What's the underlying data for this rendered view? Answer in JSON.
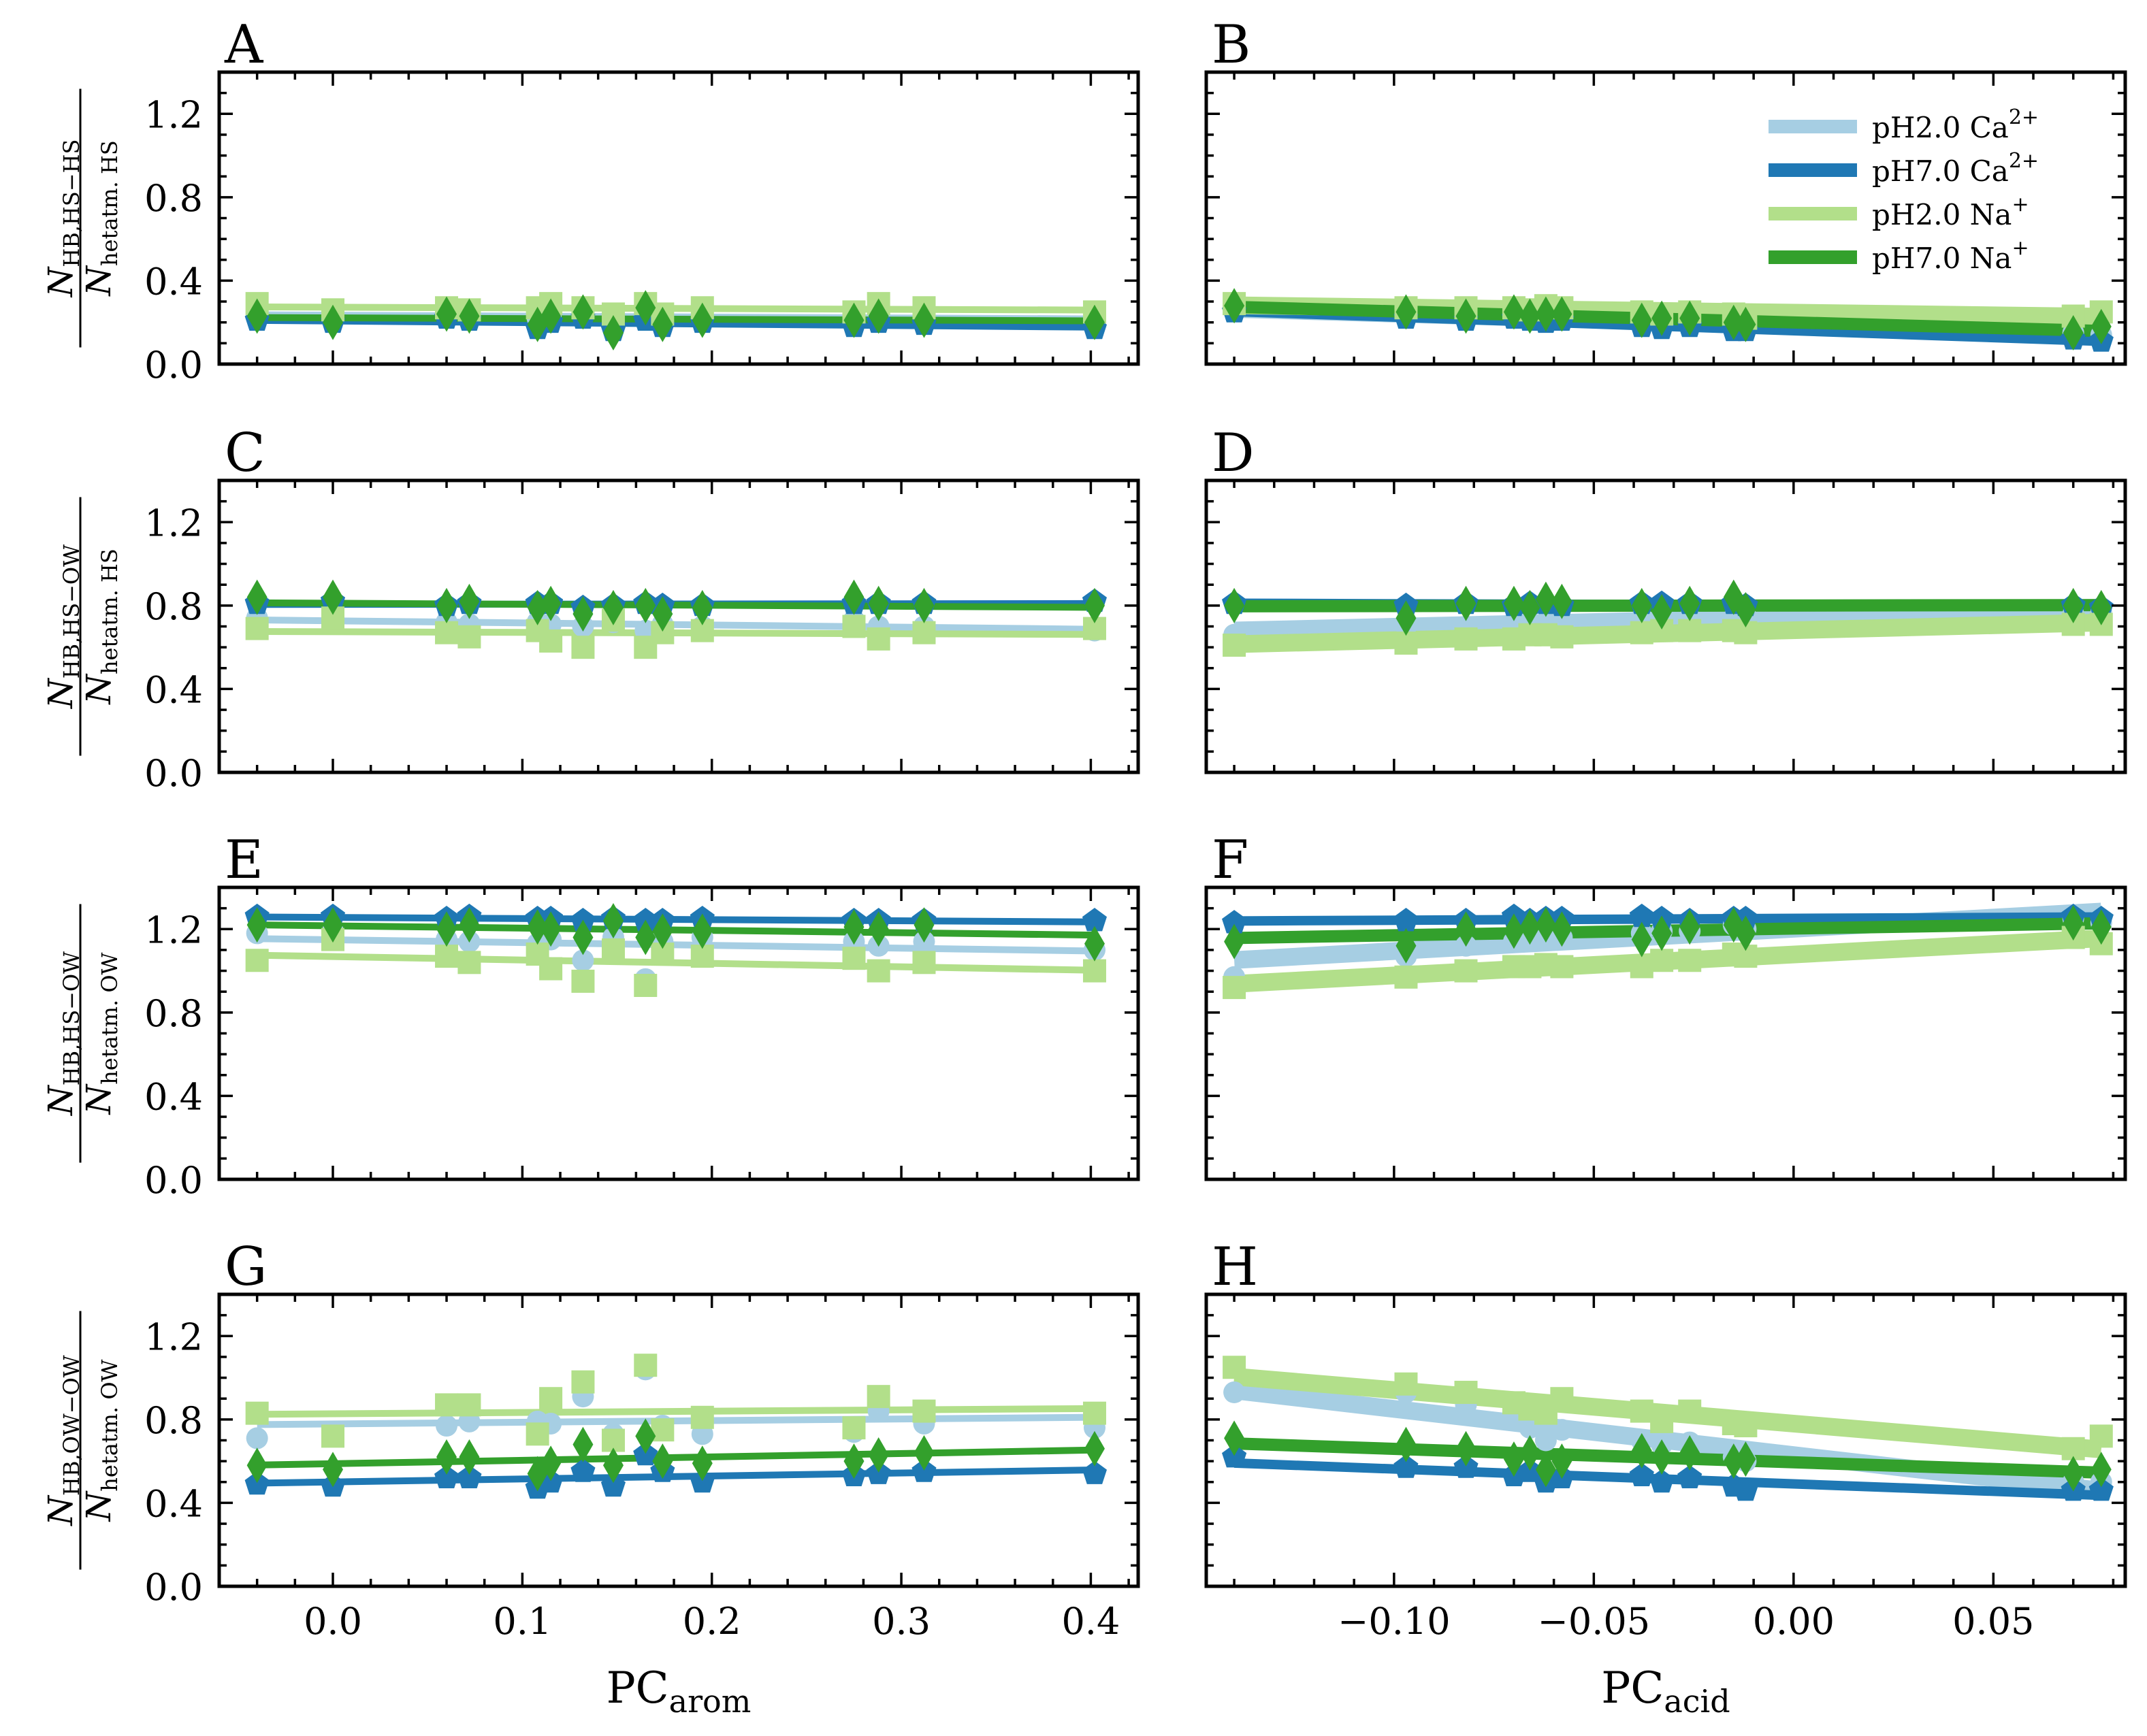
{
  "figure": {
    "legend": [
      {
        "label": "pH2.0 Ca",
        "sup": "2+",
        "color": "#a6cee3"
      },
      {
        "label": "pH7.0 Ca",
        "sup": "2+",
        "color": "#1f78b4"
      },
      {
        "label": "pH2.0 Na",
        "sup": "+",
        "color": "#b2df8a"
      },
      {
        "label": "pH7.0 Na",
        "sup": "+",
        "color": "#33a02c"
      }
    ],
    "xlabels": {
      "left": {
        "main": "PC",
        "sub": "arom"
      },
      "right": {
        "main": "PC",
        "sub": "acid"
      }
    },
    "ylabels": [
      {
        "num": "N",
        "num_sub": "HB,HS−HS",
        "den": "N",
        "den_sub": "hetatm. HS"
      },
      {
        "num": "N",
        "num_sub": "HB,HS−OW",
        "den": "N",
        "den_sub": "hetatm. HS"
      },
      {
        "num": "N",
        "num_sub": "HB,HS−OW",
        "den": "N",
        "den_sub": "hetatm. OW"
      },
      {
        "num": "N",
        "num_sub": "HB,OW−OW",
        "den": "N",
        "den_sub": "hetatm. OW"
      }
    ]
  },
  "chart_data": {
    "type": "scatter",
    "panel_letters": [
      "A",
      "B",
      "C",
      "D",
      "E",
      "F",
      "G",
      "H"
    ],
    "ylim": [
      0,
      1.4
    ],
    "yticks": [
      0.0,
      0.4,
      0.8,
      1.2
    ],
    "ytick_labels": [
      "0.0",
      "0.4",
      "0.8",
      "1.2"
    ],
    "left_xlim": [
      -0.06,
      0.425
    ],
    "left_xticks": [
      0.0,
      0.1,
      0.2,
      0.3,
      0.4
    ],
    "left_xtick_labels": [
      "0.0",
      "0.1",
      "0.2",
      "0.3",
      "0.4"
    ],
    "right_xlim": [
      -0.147,
      0.083
    ],
    "right_xticks": [
      -0.1,
      -0.05,
      0.0,
      0.05
    ],
    "right_xtick_labels": [
      "−0.10",
      "−0.05",
      "0.00",
      "0.05"
    ],
    "left_x": [
      -0.04,
      0.0,
      0.06,
      0.072,
      0.108,
      0.115,
      0.132,
      0.148,
      0.165,
      0.174,
      0.195,
      0.275,
      0.288,
      0.312,
      0.402
    ],
    "right_x": [
      -0.14,
      -0.097,
      -0.082,
      -0.07,
      -0.066,
      -0.062,
      -0.058,
      -0.038,
      -0.033,
      -0.026,
      -0.015,
      -0.012,
      0.07,
      0.077
    ],
    "panels": [
      {
        "letter": "A",
        "side": "left",
        "series": [
          {
            "name": "pH2.0 Ca2+",
            "values": [
              0.25,
              0.23,
              0.24,
              0.23,
              0.22,
              0.23,
              0.24,
              0.2,
              0.25,
              0.2,
              0.22,
              0.22,
              0.24,
              0.22,
              0.22
            ]
          },
          {
            "name": "pH7.0 Ca2+",
            "values": [
              0.21,
              0.2,
              0.22,
              0.21,
              0.17,
              0.2,
              0.22,
              0.16,
              0.21,
              0.18,
              0.2,
              0.18,
              0.2,
              0.19,
              0.17
            ]
          },
          {
            "name": "pH2.0 Na+",
            "values": [
              0.29,
              0.26,
              0.27,
              0.26,
              0.27,
              0.29,
              0.27,
              0.24,
              0.29,
              0.24,
              0.27,
              0.25,
              0.29,
              0.27,
              0.25
            ]
          },
          {
            "name": "pH7.0 Na+",
            "values": [
              0.23,
              0.2,
              0.24,
              0.23,
              0.19,
              0.23,
              0.25,
              0.15,
              0.27,
              0.19,
              0.21,
              0.21,
              0.23,
              0.21,
              0.2
            ]
          }
        ]
      },
      {
        "letter": "B",
        "side": "right",
        "series": [
          {
            "name": "pH2.0 Ca2+",
            "values": [
              0.26,
              0.23,
              0.24,
              0.23,
              0.24,
              0.22,
              0.23,
              0.2,
              0.19,
              0.2,
              0.18,
              0.19,
              0.15,
              0.14
            ]
          },
          {
            "name": "pH7.0 Ca2+",
            "values": [
              0.25,
              0.22,
              0.21,
              0.22,
              0.21,
              0.2,
              0.21,
              0.18,
              0.17,
              0.18,
              0.16,
              0.16,
              0.12,
              0.11
            ]
          },
          {
            "name": "pH2.0 Na+",
            "values": [
              0.29,
              0.27,
              0.27,
              0.27,
              0.26,
              0.28,
              0.27,
              0.25,
              0.24,
              0.25,
              0.24,
              0.22,
              0.23,
              0.25
            ]
          },
          {
            "name": "pH7.0 Na+",
            "values": [
              0.28,
              0.25,
              0.23,
              0.25,
              0.23,
              0.24,
              0.24,
              0.21,
              0.22,
              0.22,
              0.2,
              0.19,
              0.15,
              0.18
            ]
          }
        ]
      },
      {
        "letter": "C",
        "side": "left",
        "series": [
          {
            "name": "pH2.0 Ca2+",
            "values": [
              0.74,
              0.74,
              0.72,
              0.71,
              0.72,
              0.71,
              0.7,
              0.72,
              0.68,
              0.71,
              0.7,
              0.73,
              0.7,
              0.7,
              0.68
            ]
          },
          {
            "name": "pH7.0 Ca2+",
            "values": [
              0.81,
              0.82,
              0.8,
              0.81,
              0.81,
              0.81,
              0.79,
              0.8,
              0.81,
              0.8,
              0.8,
              0.81,
              0.81,
              0.81,
              0.82
            ]
          },
          {
            "name": "pH2.0 Na+",
            "values": [
              0.69,
              0.74,
              0.67,
              0.65,
              0.68,
              0.63,
              0.6,
              0.73,
              0.6,
              0.67,
              0.68,
              0.7,
              0.64,
              0.67,
              0.69
            ]
          },
          {
            "name": "pH7.0 Na+",
            "values": [
              0.84,
              0.84,
              0.8,
              0.82,
              0.79,
              0.81,
              0.76,
              0.79,
              0.8,
              0.76,
              0.79,
              0.84,
              0.81,
              0.8,
              0.8
            ]
          }
        ]
      },
      {
        "letter": "D",
        "side": "right",
        "series": [
          {
            "name": "pH2.0 Ca2+",
            "values": [
              0.66,
              0.7,
              0.7,
              0.71,
              0.72,
              0.72,
              0.72,
              0.74,
              0.73,
              0.74,
              0.74,
              0.75,
              0.76,
              0.77
            ]
          },
          {
            "name": "pH7.0 Ca2+",
            "values": [
              0.81,
              0.8,
              0.81,
              0.8,
              0.81,
              0.81,
              0.8,
              0.81,
              0.81,
              0.81,
              0.81,
              0.8,
              0.8,
              0.79
            ]
          },
          {
            "name": "pH2.0 Na+",
            "values": [
              0.61,
              0.62,
              0.64,
              0.64,
              0.66,
              0.66,
              0.65,
              0.67,
              0.68,
              0.68,
              0.68,
              0.67,
              0.71,
              0.71
            ]
          },
          {
            "name": "pH7.0 Na+",
            "values": [
              0.8,
              0.74,
              0.81,
              0.81,
              0.79,
              0.83,
              0.82,
              0.8,
              0.77,
              0.81,
              0.84,
              0.78,
              0.8,
              0.79
            ]
          }
        ]
      },
      {
        "letter": "E",
        "side": "left",
        "series": [
          {
            "name": "pH2.0 Ca2+",
            "values": [
              1.18,
              1.19,
              1.15,
              1.14,
              1.13,
              1.15,
              1.05,
              1.16,
              0.96,
              1.14,
              1.16,
              1.14,
              1.12,
              1.14,
              1.1
            ]
          },
          {
            "name": "pH7.0 Ca2+",
            "values": [
              1.26,
              1.26,
              1.25,
              1.26,
              1.25,
              1.25,
              1.24,
              1.25,
              1.24,
              1.24,
              1.25,
              1.24,
              1.24,
              1.24,
              1.24
            ]
          },
          {
            "name": "pH2.0 Na+",
            "values": [
              1.05,
              1.15,
              1.07,
              1.04,
              1.08,
              1.01,
              0.95,
              1.1,
              0.93,
              1.08,
              1.07,
              1.06,
              1.0,
              1.04,
              1.0
            ]
          },
          {
            "name": "pH7.0 Na+",
            "values": [
              1.22,
              1.22,
              1.2,
              1.22,
              1.21,
              1.2,
              1.16,
              1.24,
              1.16,
              1.19,
              1.19,
              1.21,
              1.2,
              1.22,
              1.13
            ]
          }
        ]
      },
      {
        "letter": "F",
        "side": "right",
        "series": [
          {
            "name": "pH2.0 Ca2+",
            "values": [
              0.97,
              1.07,
              1.12,
              1.14,
              1.15,
              1.16,
              1.16,
              1.18,
              1.19,
              1.19,
              1.22,
              1.2,
              1.25,
              1.23
            ]
          },
          {
            "name": "pH7.0 Ca2+",
            "values": [
              1.23,
              1.24,
              1.24,
              1.26,
              1.24,
              1.25,
              1.25,
              1.26,
              1.25,
              1.24,
              1.25,
              1.25,
              1.26,
              1.25
            ]
          },
          {
            "name": "pH2.0 Na+",
            "values": [
              0.92,
              0.97,
              1.0,
              1.02,
              1.02,
              1.03,
              1.02,
              1.02,
              1.05,
              1.05,
              1.08,
              1.07,
              1.16,
              1.13
            ]
          },
          {
            "name": "pH7.0 Na+",
            "values": [
              1.14,
              1.12,
              1.2,
              1.19,
              1.21,
              1.22,
              1.2,
              1.15,
              1.18,
              1.21,
              1.22,
              1.18,
              1.23,
              1.21
            ]
          }
        ]
      },
      {
        "letter": "G",
        "side": "left",
        "series": [
          {
            "name": "pH2.0 Ca2+",
            "values": [
              0.71,
              0.73,
              0.77,
              0.79,
              0.79,
              0.78,
              0.91,
              0.73,
              1.04,
              0.77,
              0.73,
              0.74,
              0.84,
              0.78,
              0.76
            ]
          },
          {
            "name": "pH7.0 Ca2+",
            "values": [
              0.49,
              0.48,
              0.52,
              0.52,
              0.47,
              0.5,
              0.55,
              0.48,
              0.63,
              0.55,
              0.5,
              0.53,
              0.54,
              0.55,
              0.54
            ]
          },
          {
            "name": "pH2.0 Na+",
            "values": [
              0.83,
              0.72,
              0.87,
              0.87,
              0.73,
              0.9,
              0.98,
              0.7,
              1.06,
              0.75,
              0.81,
              0.76,
              0.91,
              0.84,
              0.83
            ]
          },
          {
            "name": "pH7.0 Na+",
            "values": [
              0.58,
              0.56,
              0.62,
              0.62,
              0.54,
              0.59,
              0.68,
              0.58,
              0.72,
              0.6,
              0.59,
              0.6,
              0.63,
              0.64,
              0.66
            ]
          }
        ]
      },
      {
        "letter": "H",
        "side": "right",
        "series": [
          {
            "name": "pH2.0 Ca2+",
            "values": [
              0.93,
              0.93,
              0.87,
              0.8,
              0.76,
              0.7,
              0.75,
              0.7,
              0.68,
              0.69,
              0.62,
              0.6,
              0.5,
              0.5
            ]
          },
          {
            "name": "pH7.0 Ca2+",
            "values": [
              0.62,
              0.57,
              0.57,
              0.53,
              0.55,
              0.5,
              0.52,
              0.53,
              0.5,
              0.52,
              0.48,
              0.46,
              0.46,
              0.46
            ]
          },
          {
            "name": "pH2.0 Na+",
            "values": [
              1.05,
              0.97,
              0.93,
              0.88,
              0.85,
              0.83,
              0.9,
              0.84,
              0.79,
              0.84,
              0.78,
              0.77,
              0.66,
              0.72
            ]
          },
          {
            "name": "pH7.0 Na+",
            "values": [
              0.71,
              0.68,
              0.66,
              0.61,
              0.64,
              0.56,
              0.6,
              0.65,
              0.62,
              0.64,
              0.6,
              0.61,
              0.54,
              0.56
            ]
          }
        ]
      }
    ]
  }
}
